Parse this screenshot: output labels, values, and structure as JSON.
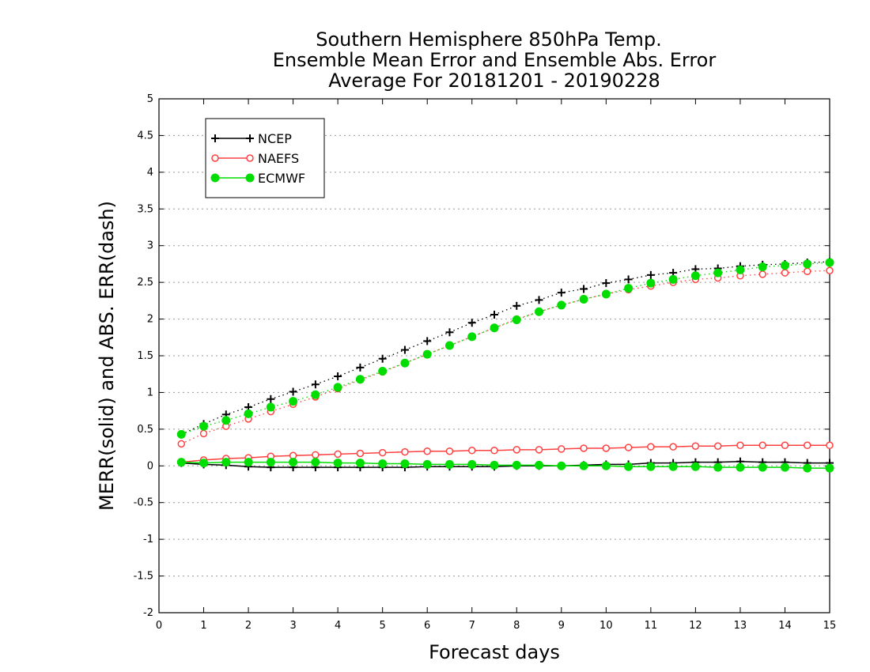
{
  "chart_data": {
    "type": "line",
    "title_lines": [
      "Southern Hemisphere 850hPa Temp.",
      "Ensemble Mean Error and Ensemble Abs. Error",
      "Average For 20181201 - 20190228"
    ],
    "xlabel": "Forecast days",
    "ylabel": "MERR(solid) and ABS. ERR(dash)",
    "xlim": [
      0,
      15
    ],
    "ylim": [
      -2,
      5
    ],
    "x_ticks": [
      "0",
      "1",
      "2",
      "3",
      "4",
      "5",
      "6",
      "7",
      "8",
      "9",
      "10",
      "11",
      "12",
      "13",
      "14",
      "15"
    ],
    "y_ticks": [
      "5",
      "4.5",
      "4",
      "3.5",
      "3",
      "2.5",
      "2",
      "1.5",
      "1",
      "0.5",
      "0",
      "-0.5",
      "-1",
      "-1.5",
      "-2"
    ],
    "grid": "horizontal dotted",
    "legend_position": "top-left",
    "x": [
      0.5,
      1,
      1.5,
      2,
      2.5,
      3,
      3.5,
      4,
      4.5,
      5,
      5.5,
      6,
      6.5,
      7,
      7.5,
      8,
      8.5,
      9,
      9.5,
      10,
      10.5,
      11,
      11.5,
      12,
      12.5,
      13,
      13.5,
      14,
      14.5,
      15
    ],
    "series": [
      {
        "name": "NCEP",
        "color": "#000000",
        "marker": "plus",
        "mean_error": [
          0.04,
          0.02,
          0.01,
          -0.01,
          -0.02,
          -0.02,
          -0.02,
          -0.02,
          -0.02,
          -0.02,
          -0.02,
          -0.01,
          -0.01,
          -0.01,
          -0.01,
          0.0,
          0.0,
          0.0,
          0.01,
          0.02,
          0.02,
          0.04,
          0.04,
          0.05,
          0.05,
          0.06,
          0.05,
          0.05,
          0.04,
          0.04
        ],
        "abs_error": [
          0.43,
          0.57,
          0.7,
          0.8,
          0.91,
          1.01,
          1.11,
          1.22,
          1.34,
          1.46,
          1.58,
          1.7,
          1.82,
          1.95,
          2.06,
          2.18,
          2.26,
          2.36,
          2.41,
          2.49,
          2.54,
          2.6,
          2.63,
          2.68,
          2.69,
          2.72,
          2.74,
          2.75,
          2.77,
          2.78
        ]
      },
      {
        "name": "NAEFS",
        "color": "#ff4040",
        "marker": "open-circle",
        "mean_error": [
          0.05,
          0.08,
          0.1,
          0.11,
          0.13,
          0.14,
          0.15,
          0.16,
          0.17,
          0.18,
          0.19,
          0.2,
          0.2,
          0.21,
          0.21,
          0.22,
          0.22,
          0.23,
          0.24,
          0.24,
          0.25,
          0.26,
          0.26,
          0.27,
          0.27,
          0.28,
          0.28,
          0.28,
          0.28,
          0.28
        ],
        "abs_error": [
          0.3,
          0.44,
          0.54,
          0.64,
          0.74,
          0.84,
          0.94,
          1.05,
          1.17,
          1.28,
          1.4,
          1.52,
          1.64,
          1.76,
          1.88,
          2.0,
          2.1,
          2.19,
          2.27,
          2.34,
          2.4,
          2.45,
          2.5,
          2.54,
          2.56,
          2.59,
          2.61,
          2.63,
          2.65,
          2.66
        ]
      },
      {
        "name": "ECMWF",
        "color": "#00dd00",
        "marker": "filled-circle",
        "mean_error": [
          0.05,
          0.04,
          0.05,
          0.05,
          0.05,
          0.05,
          0.05,
          0.04,
          0.04,
          0.03,
          0.03,
          0.02,
          0.02,
          0.02,
          0.01,
          0.01,
          0.01,
          0.0,
          0.0,
          0.0,
          -0.01,
          -0.01,
          -0.01,
          -0.01,
          -0.02,
          -0.02,
          -0.02,
          -0.02,
          -0.03,
          -0.03
        ],
        "abs_error": [
          0.43,
          0.54,
          0.62,
          0.71,
          0.8,
          0.88,
          0.97,
          1.07,
          1.18,
          1.29,
          1.4,
          1.52,
          1.64,
          1.76,
          1.88,
          1.99,
          2.1,
          2.19,
          2.27,
          2.34,
          2.42,
          2.49,
          2.54,
          2.59,
          2.63,
          2.67,
          2.71,
          2.73,
          2.75,
          2.77
        ]
      }
    ]
  }
}
